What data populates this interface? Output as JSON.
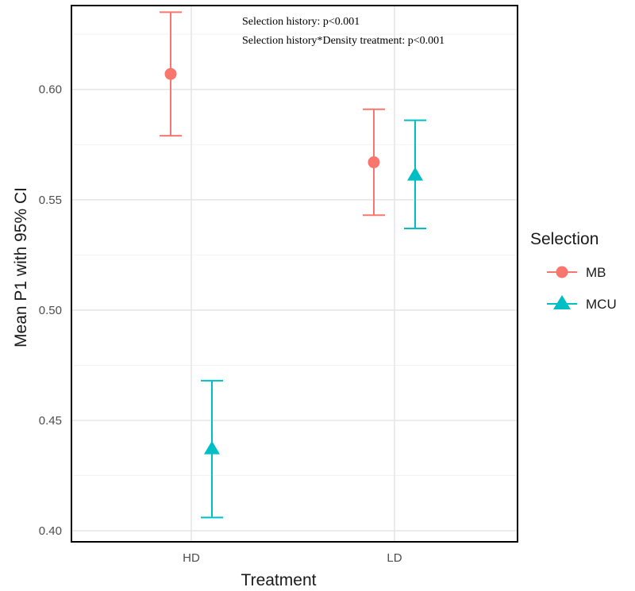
{
  "chart_data": {
    "type": "scatter",
    "title": "",
    "xlabel": "Treatment",
    "ylabel": "Mean P1 with 95% CI",
    "categories": [
      "HD",
      "LD"
    ],
    "ylim": [
      0.395,
      0.638
    ],
    "yticks": [
      0.4,
      0.45,
      0.5,
      0.55,
      0.6
    ],
    "ytick_labels": [
      "0.40",
      "0.45",
      "0.50",
      "0.55",
      "0.60"
    ],
    "grid": true,
    "legend": {
      "title": "Selection",
      "position": "right"
    },
    "annotations": [
      "Selection history: p<0.001",
      "Selection history*Density treatment: p<0.001"
    ],
    "series": [
      {
        "name": "MB",
        "marker": "circle",
        "color": "#F8766D",
        "points": [
          {
            "x": "HD",
            "y": 0.607,
            "lower": 0.579,
            "upper": 0.635
          },
          {
            "x": "LD",
            "y": 0.567,
            "lower": 0.543,
            "upper": 0.591
          }
        ]
      },
      {
        "name": "MCU",
        "marker": "triangle",
        "color": "#00BFC4",
        "points": [
          {
            "x": "HD",
            "y": 0.437,
            "lower": 0.406,
            "upper": 0.468
          },
          {
            "x": "LD",
            "y": 0.561,
            "lower": 0.537,
            "upper": 0.586
          }
        ]
      }
    ]
  }
}
